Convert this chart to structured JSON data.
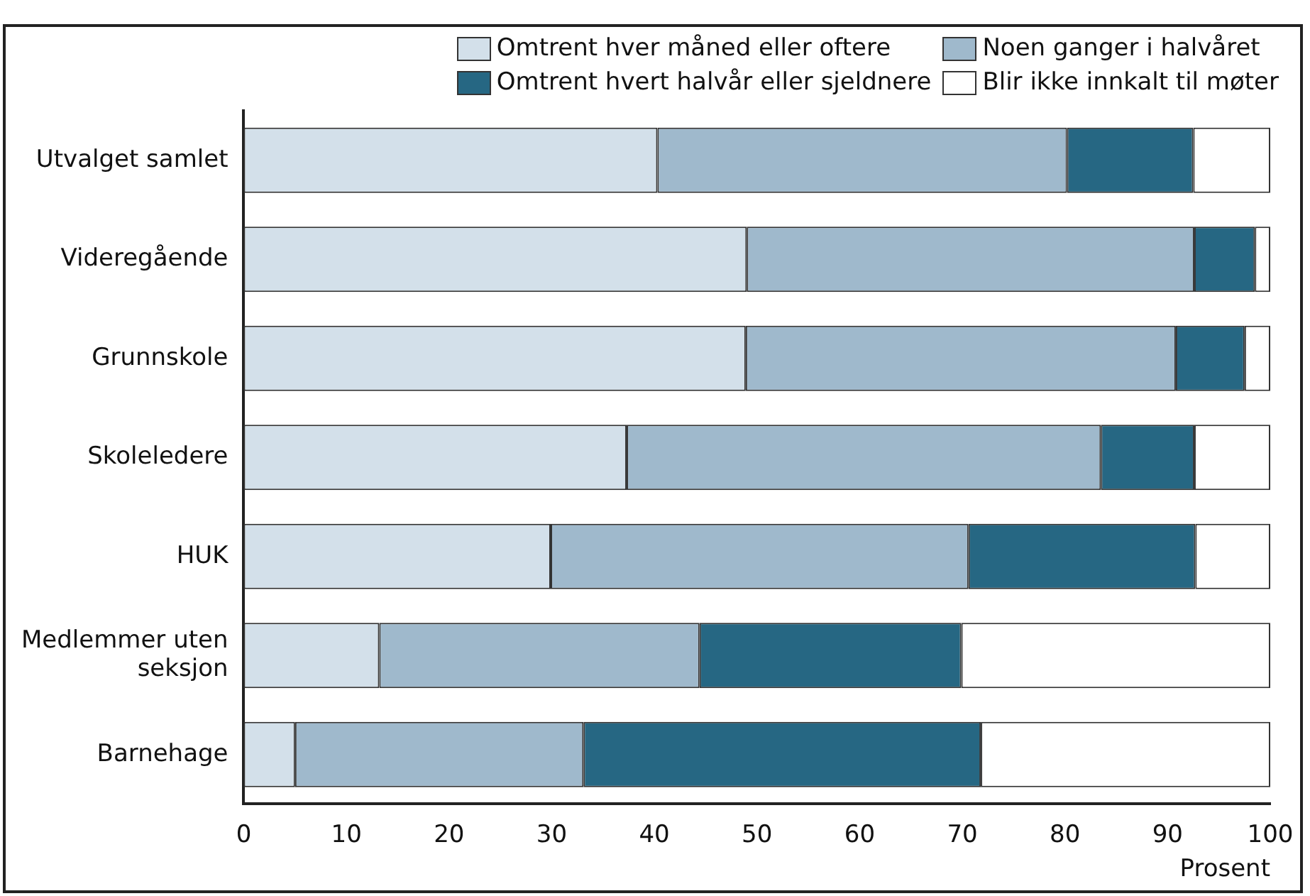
{
  "chart_data": {
    "type": "bar",
    "orientation": "horizontal",
    "stacked": true,
    "xlabel": "Prosent",
    "categories": [
      "Utvalget samlet",
      "Videregående",
      "Grunnskole",
      "Skoleledere",
      "HUK",
      "Medlemmer uten seksjon",
      "Barnehage"
    ],
    "series": [
      {
        "name": "Omtrent hver måned eller oftere",
        "color": "#d3e0ea",
        "values": [
          40.3,
          49.0,
          48.9,
          37.3,
          29.9,
          13.2,
          5.0
        ]
      },
      {
        "name": "Noen ganger i halvåret",
        "color": "#9fb9cc",
        "values": [
          39.9,
          43.6,
          41.9,
          46.2,
          40.7,
          31.2,
          28.1
        ]
      },
      {
        "name": "Omtrent hvert halvår eller sjeldnere",
        "color": "#266783",
        "values": [
          12.3,
          5.9,
          6.7,
          9.1,
          22.1,
          25.5,
          38.7
        ]
      },
      {
        "name": "Blir ikke innkalt til møter",
        "color": "#ffffff",
        "values": [
          7.5,
          1.5,
          2.5,
          7.4,
          7.3,
          30.1,
          28.2
        ]
      }
    ],
    "xlim": [
      0,
      100
    ],
    "xticks": [
      0,
      10,
      20,
      30,
      40,
      50,
      60,
      70,
      80,
      90,
      100
    ],
    "grid": false,
    "legend": "top right"
  }
}
